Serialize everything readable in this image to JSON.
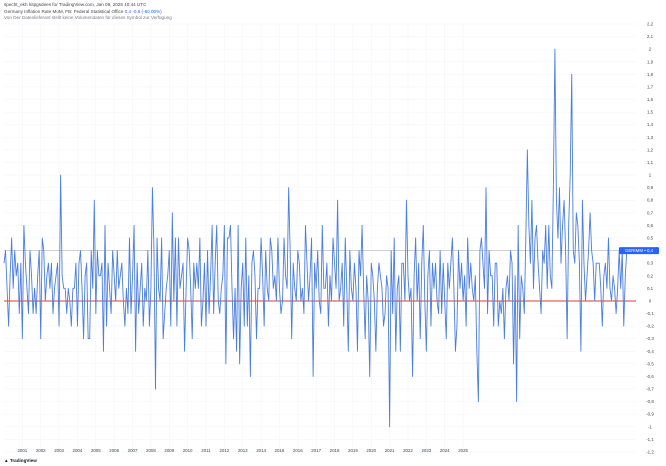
{
  "header": {
    "text": "specht_ekh hitpgsdees for TradingView.com, Jan 09, 2025 10:44 UTC"
  },
  "legend": {
    "title": "Germany Inflation Rate MoM, FB: Federal Statistical Office",
    "value": "0.4 -0.6 (-60.00%)",
    "note": "Von Der Datenlieferant stellt keine Volumendaten für dieses Symbol zur Verfügung"
  },
  "logo": {
    "text": "TradingView"
  },
  "colors": {
    "line": "#4a7ee0",
    "zero_line": "#e53935",
    "last_value_line": "#b0b6c2",
    "badge": "#2962ff"
  },
  "chart_data": {
    "type": "line",
    "title": "Germany Inflation Rate MoM",
    "xlabel": "",
    "ylabel": "",
    "ylim": [
      -1.2,
      2.2
    ],
    "x_ticks": [
      "2001",
      "2002",
      "2003",
      "2004",
      "2005",
      "2006",
      "2007",
      "2008",
      "2009",
      "2010",
      "2011",
      "2012",
      "2013",
      "2014",
      "2015",
      "2016",
      "2017",
      "2018",
      "2019",
      "2020",
      "2021",
      "2022",
      "2023",
      "2024",
      "2025"
    ],
    "y_ticks": [
      "2,2",
      "2,1",
      "2",
      "1,9",
      "1,8",
      "1,7",
      "1,6",
      "1,5",
      "1,4",
      "1,3",
      "1,2",
      "1,1",
      "1",
      "0,9",
      "0,8",
      "0,7",
      "0,6",
      "0,5",
      "0,4",
      "0,3",
      "0,2",
      "0,1",
      "0",
      "-0,1",
      "-0,2",
      "-0,3",
      "-0,4",
      "-0,5",
      "-0,6",
      "-0,7",
      "-0,8",
      "-0,9",
      "-1",
      "-1,1",
      "-1,2"
    ],
    "last_value_label": "0.4",
    "last_value_badge": "GERIMM • 0,4",
    "grid": true,
    "series": [
      {
        "start": "2000-01",
        "values": [
          0.3,
          0.4,
          0.1,
          -0.2,
          0.2,
          0.5,
          0.1,
          0.4,
          0.2,
          0.3,
          -0.1,
          0.3,
          -0.3,
          0.6,
          0.3,
          0.1,
          -0.1,
          0.4,
          0.2,
          -0.1,
          0.1,
          -0.1,
          0.2,
          0.4,
          -0.3,
          0.5,
          0.4,
          0.0,
          0.2,
          0.3,
          0.1,
          0.3,
          -0.1,
          0.1,
          0.2,
          0.3,
          -0.2,
          1.0,
          0.2,
          0.1,
          0.1,
          -0.1,
          0.1,
          0.0,
          -0.2,
          0.1,
          0.1,
          0.3,
          -0.2,
          0.3,
          0.4,
          0.1,
          -0.3,
          0.2,
          0.3,
          -0.3,
          -0.3,
          0.4,
          0.1,
          0.8,
          -0.1,
          0.4,
          0.2,
          0.2,
          0.3,
          -0.4,
          0.6,
          -0.2,
          0.3,
          0.1,
          -0.1,
          0.4,
          0.2,
          0.0,
          0.4,
          0.1,
          0.2,
          0.3,
          0.0,
          -0.2,
          0.1,
          -0.1,
          0.5,
          -0.1,
          0.2,
          0.6,
          -0.4,
          0.3,
          -0.1,
          0.1,
          0.3,
          -0.2,
          0.1,
          0.0,
          0.4,
          -0.2,
          0.1,
          0.9,
          0.4,
          -0.7,
          0.5,
          0.1,
          0.0,
          0.5,
          -0.3,
          -0.1,
          0.1,
          0.2,
          0.4,
          -0.2,
          0.7,
          0.0,
          0.5,
          -0.2,
          0.5,
          0.1,
          0.2,
          0.3,
          -0.4,
          0.1,
          0.5,
          0.4,
          0.1,
          -0.3,
          0.3,
          0.1,
          0.3,
          0.1,
          0.5,
          -0.2,
          0.0,
          0.3,
          -0.2,
          0.4,
          -0.1,
          0.2,
          0.6,
          -0.1,
          0.3,
          0.6,
          0.0,
          -0.1,
          0.1,
          0.2,
          0.6,
          -0.5,
          0.5,
          0.5,
          0.6,
          0.1,
          -0.3,
          0.1,
          -0.4,
          0.6,
          -0.5,
          0.1,
          0.3,
          -0.2,
          0.5,
          -0.2,
          0.2,
          -0.6,
          0.3,
          0.4,
          0.2,
          -0.3,
          0.1,
          0.1,
          0.5,
          0.2,
          -0.2,
          0.4,
          0.1,
          0.0,
          0.5,
          0.4,
          0.1,
          0.2,
          0.0,
          0.5,
          0.1,
          -0.1,
          0.0,
          0.5,
          0.2,
          0.1,
          0.9,
          0.4,
          -0.3,
          0.3,
          0.1,
          0.0,
          0.4,
          0.3,
          0.0,
          0.1,
          -0.1,
          0.6,
          0.3,
          0.0,
          0.2,
          0.5,
          -0.6,
          0.3,
          0.1,
          0.4,
          0.0,
          -0.1,
          0.6,
          0.1,
          0.1,
          0.3,
          -0.2,
          0.2,
          0.0,
          0.5,
          0.3,
          0.1,
          0.8,
          0.0,
          0.1,
          0.3,
          -0.2,
          0.5,
          0.1,
          -0.4,
          0.4,
          0.1,
          0.0,
          0.3,
          0.1,
          -0.4,
          0.4,
          0.2,
          0.6,
          0.1,
          -0.3,
          0.2,
          0.0,
          -0.6,
          0.3,
          0.2,
          0.0,
          -0.4,
          0.1,
          0.3,
          0.2,
          0.1,
          -0.2,
          -0.1,
          0.2,
          0.1,
          -1.0,
          0.4,
          -0.1,
          0.5,
          -0.4,
          0.1,
          0.2,
          -0.4,
          0.3,
          0.3,
          0.0,
          0.8,
          0.2,
          0.0,
          0.1,
          -0.6,
          0.2,
          0.5,
          0.0,
          0.3,
          -0.3,
          0.3,
          0.6,
          0.0,
          -0.4,
          0.2,
          0.4,
          -0.2,
          0.3,
          0.1,
          0.3,
          0.0,
          -0.1,
          0.4,
          -0.1,
          0.3,
          0.0,
          -0.3,
          0.3,
          0.1,
          0.3,
          0.5,
          0.1,
          -0.4,
          -0.2,
          0.4,
          0.1,
          0.3,
          0.0,
          0.2,
          -0.2,
          0.5,
          0.1,
          0.3,
          0.1,
          0.0,
          0.2,
          -0.4,
          -0.8,
          0.4,
          0.5,
          0.3,
          0.1,
          0.9,
          -0.1,
          0.4,
          0.2,
          0.2,
          -0.2,
          0.3,
          0.3,
          -0.2,
          0.0,
          -0.1,
          0.1,
          -0.3,
          0.1,
          0.2,
          0.0,
          0.4,
          0.3,
          -0.5,
          0.2,
          -0.8,
          0.6,
          -0.3,
          0.2,
          0.1,
          -0.1,
          0.5,
          1.2,
          0.6,
          0.3,
          0.8,
          0.1,
          0.5,
          0.6,
          0.3,
          0.1,
          -0.1,
          0.4,
          0.3,
          0.6,
          0.1,
          0.6,
          0.2,
          0.1,
          0.9,
          2.0,
          0.8,
          0.5,
          0.9,
          0.3,
          0.6,
          0.8,
          0.4,
          -0.3,
          0.6,
          1.0,
          1.8,
          0.4,
          0.3,
          0.7,
          0.6,
          0.3,
          -0.4,
          0.8,
          0.3,
          0.0,
          0.2,
          0.4,
          0.7,
          0.4,
          0.3,
          0.0,
          0.3,
          0.3,
          0.3,
          0.1,
          -0.2,
          0.2,
          0.3,
          0.1,
          0.5,
          0.1,
          0.0,
          0.2,
          0.1,
          -0.1,
          0.1,
          0.4,
          0.1,
          0.4,
          -0.2,
          0.2,
          0.4,
          0.4
        ]
      }
    ]
  }
}
